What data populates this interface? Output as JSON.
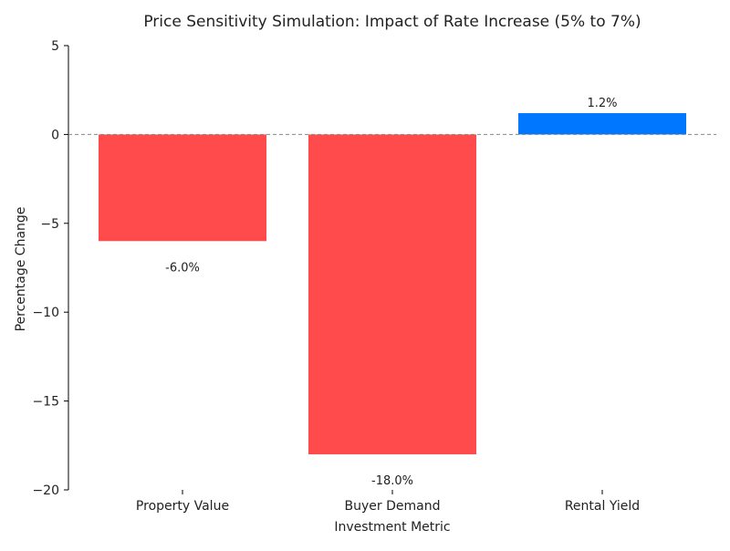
{
  "chart_data": {
    "type": "bar",
    "title": "Price Sensitivity Simulation: Impact of Rate Increase (5% to 7%)",
    "xlabel": "Investment Metric",
    "ylabel": "Percentage Change",
    "categories": [
      "Property Value",
      "Buyer Demand",
      "Rental Yield"
    ],
    "values": [
      -6.0,
      -18.0,
      1.2
    ],
    "data_labels": [
      "-6.0%",
      "-18.0%",
      "1.2%"
    ],
    "colors": [
      "#FF4B4B",
      "#FF4B4B",
      "#0077FF"
    ],
    "ylim": [
      -20,
      5
    ],
    "yticks": [
      5,
      0,
      -5,
      -10,
      -15,
      -20
    ],
    "ytick_labels": [
      "5",
      "0",
      "−5",
      "−10",
      "−15",
      "−20"
    ],
    "reference_line": {
      "y": 0,
      "style": "dashed",
      "color": "#888888"
    },
    "grid": false
  }
}
